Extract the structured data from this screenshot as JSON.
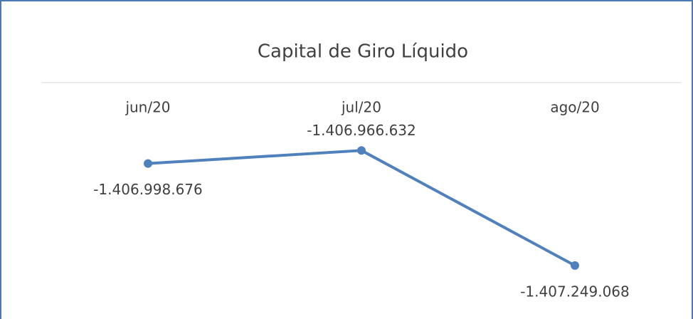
{
  "chart_data": {
    "type": "line",
    "title": "Capital de Giro Líquido",
    "categories": [
      "jun/20",
      "jul/20",
      "ago/20"
    ],
    "series": [
      {
        "name": "Capital de Giro Líquido",
        "color": "#4f81bd",
        "values": [
          -1406998676,
          -1406966632,
          -1407249068
        ],
        "value_labels": [
          "-1.406.998.676",
          "-1.406.966.632",
          "-1.407.249.068"
        ]
      }
    ],
    "ylim": [
      -1407300000,
      -1406800000
    ]
  }
}
